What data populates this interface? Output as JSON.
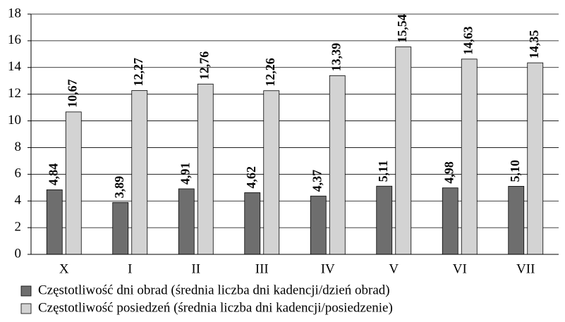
{
  "chart_data": {
    "type": "bar",
    "categories": [
      "X",
      "I",
      "II",
      "III",
      "IV",
      "V",
      "VI",
      "VII"
    ],
    "series": [
      {
        "name": "Częstotliwość dni obrad (średnia liczba dni kadencji/dzień obrad)",
        "color": "#6e6e6e",
        "values": [
          4.84,
          3.89,
          4.91,
          4.62,
          4.37,
          5.11,
          4.98,
          5.1
        ],
        "value_labels": [
          "4,84",
          "3,89",
          "4,91",
          "4,62",
          "4,37",
          "5,11",
          "4,98",
          "5,10"
        ]
      },
      {
        "name": "Częstotliwość posiedzeń (średnia liczba dni kadencji/posiedzenie)",
        "color": "#d3d3d3",
        "values": [
          10.67,
          12.27,
          12.76,
          12.26,
          13.39,
          15.54,
          14.63,
          14.35
        ],
        "value_labels": [
          "10,67",
          "12,27",
          "12,76",
          "12,26",
          "13,39",
          "15,54",
          "14,63",
          "14,35"
        ]
      }
    ],
    "ylim": [
      0,
      18
    ],
    "yticks": [
      0,
      2,
      4,
      6,
      8,
      10,
      12,
      14,
      16,
      18
    ],
    "grid": true
  }
}
